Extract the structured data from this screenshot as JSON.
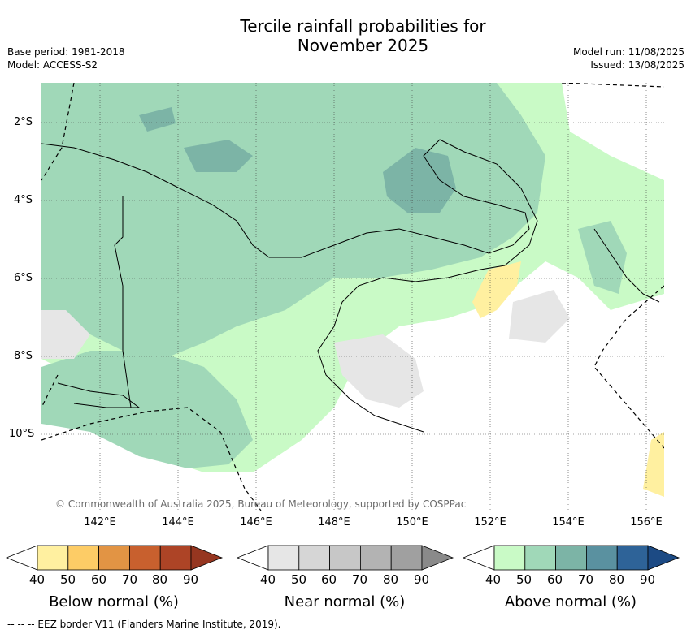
{
  "title_line1": "Tercile rainfall probabilities for",
  "title_line2": "November 2025",
  "base_period": "Base period: 1981-2018",
  "model": "Model: ACCESS-S2",
  "model_run": "Model run: 11/08/2025",
  "issued": "Issued: 13/08/2025",
  "copyright": "© Commonwealth of Australia 2025, Bureau of Meteorology, supported by COSPPac",
  "lat_labels": [
    "2°S",
    "4°S",
    "6°S",
    "8°S",
    "10°S"
  ],
  "lon_labels": [
    "142°E",
    "144°E",
    "146°E",
    "148°E",
    "150°E",
    "152°E",
    "154°E",
    "156°E"
  ],
  "colorbars": [
    {
      "title": "Below normal (%)",
      "ticks": [
        "40",
        "50",
        "60",
        "70",
        "80",
        "90"
      ],
      "colors": [
        "#fff0a0",
        "#fdcc66",
        "#e29444",
        "#c8602e",
        "#ad4426",
        "#963620"
      ]
    },
    {
      "title": "Near normal (%)",
      "ticks": [
        "40",
        "50",
        "60",
        "70",
        "80",
        "90"
      ],
      "colors": [
        "#e6e6e6",
        "#d6d6d6",
        "#c7c7c7",
        "#b3b3b3",
        "#a0a0a0",
        "#8a8a8a"
      ]
    },
    {
      "title": "Above normal (%)",
      "ticks": [
        "40",
        "50",
        "60",
        "70",
        "80",
        "90"
      ],
      "colors": [
        "#c9fac6",
        "#a0d8b8",
        "#7cb4a6",
        "#5a91a0",
        "#2e6398",
        "#1c4a84"
      ]
    }
  ],
  "footer": "--  --  -- EEZ border V11 (Flanders Marine Institute, 2019).",
  "colors": {
    "above_50": "#c9fac6",
    "above_60": "#a0d8b8",
    "above_70": "#7cb4a6",
    "below_40": "#fff0a0",
    "near_40": "#e6e6e6"
  }
}
